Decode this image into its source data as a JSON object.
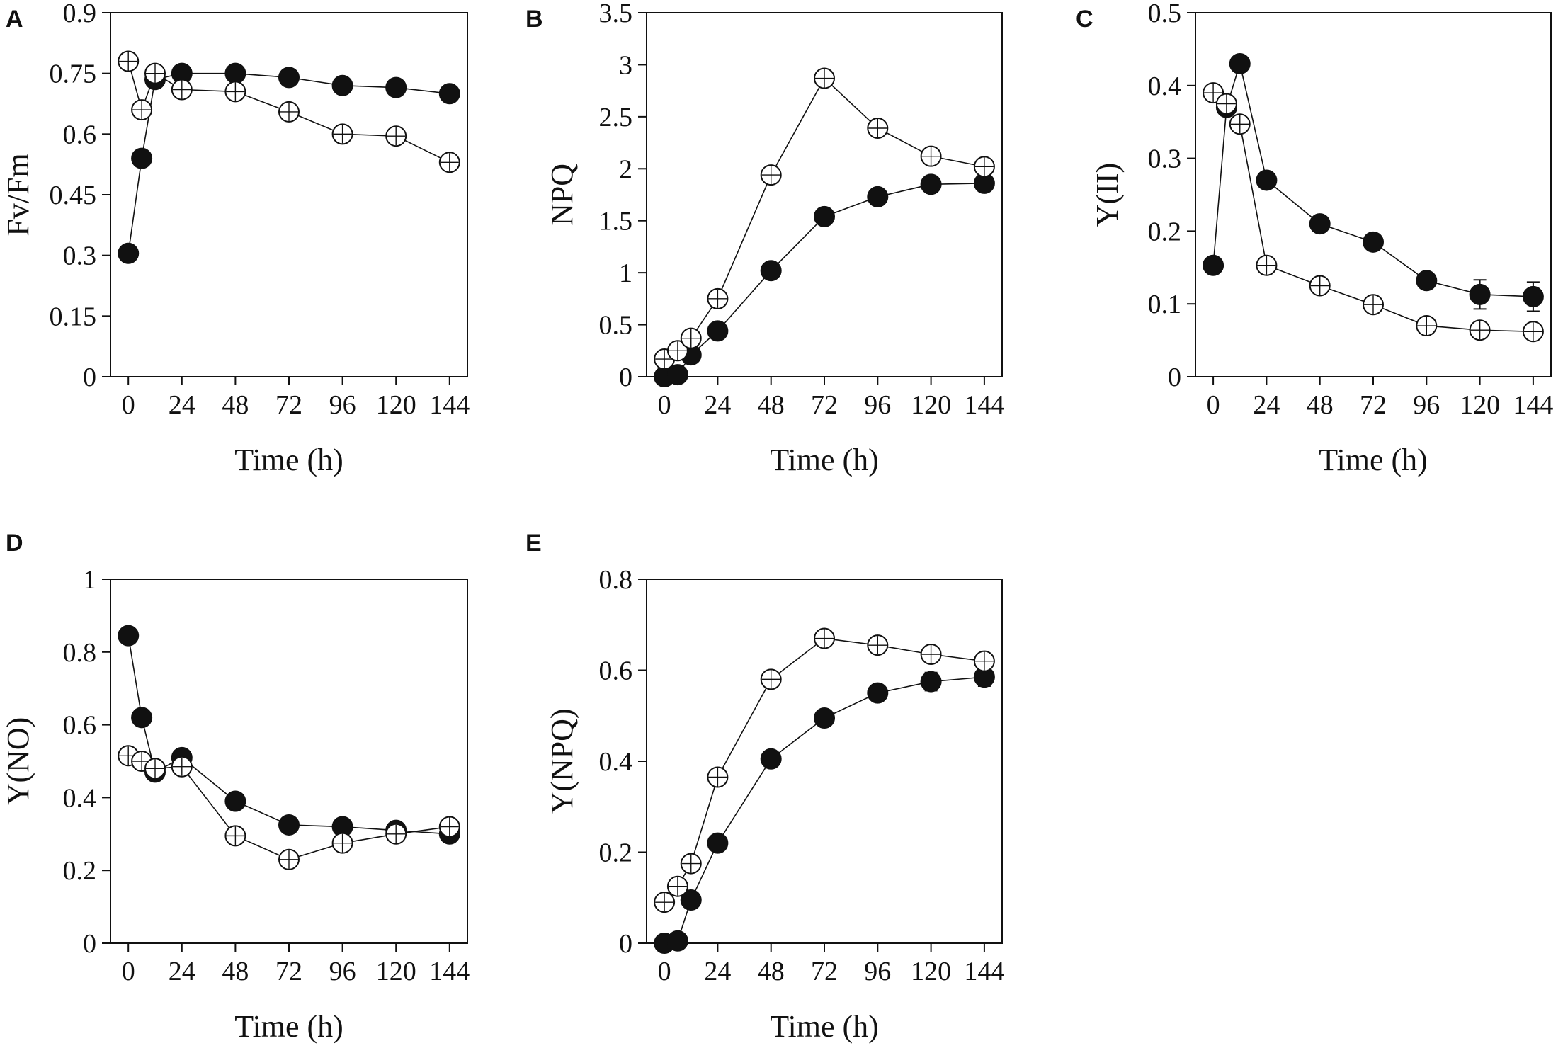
{
  "figure": {
    "background": "#ffffff",
    "ink": "#111111"
  },
  "chart_data": [
    {
      "panel": "A",
      "type": "line",
      "xlabel": "Time (h)",
      "ylabel": "Fv/Fm",
      "xlim": [
        -8,
        152
      ],
      "ylim": [
        0,
        0.9
      ],
      "xticks": [
        0,
        24,
        48,
        72,
        96,
        120,
        144
      ],
      "xtick_labels": [
        "0",
        "24",
        "48",
        "72",
        "96",
        "120",
        "144"
      ],
      "yticks": [
        0,
        0.15,
        0.3,
        0.45,
        0.6,
        0.75,
        0.9
      ],
      "ytick_labels": [
        "0",
        "0.15",
        "0.3",
        "0.45",
        "0.6",
        "0.75",
        "0.9"
      ],
      "series": [
        {
          "name": "filled",
          "marker": "filled-circle",
          "x": [
            0,
            6,
            12,
            24,
            48,
            72,
            96,
            120,
            144
          ],
          "y": [
            0.305,
            0.54,
            0.735,
            0.75,
            0.75,
            0.74,
            0.72,
            0.715,
            0.7
          ],
          "err": [
            0.01,
            0.01,
            0.01,
            0.01,
            0.01,
            0.01,
            0.01,
            0.01,
            0.01
          ]
        },
        {
          "name": "open",
          "marker": "open-circle",
          "x": [
            0,
            6,
            12,
            24,
            48,
            72,
            96,
            120,
            144
          ],
          "y": [
            0.78,
            0.66,
            0.75,
            0.71,
            0.705,
            0.655,
            0.6,
            0.595,
            0.53
          ],
          "err": [
            0.01,
            0.01,
            0.01,
            0.015,
            0.015,
            0.015,
            0.01,
            0.01,
            0.015
          ]
        }
      ]
    },
    {
      "panel": "B",
      "type": "line",
      "xlabel": "Time (h)",
      "ylabel": "NPQ",
      "xlim": [
        -8,
        152
      ],
      "ylim": [
        0,
        3.5
      ],
      "xticks": [
        0,
        24,
        48,
        72,
        96,
        120,
        144
      ],
      "xtick_labels": [
        "0",
        "24",
        "48",
        "72",
        "96",
        "120",
        "144"
      ],
      "yticks": [
        0,
        0.5,
        1,
        1.5,
        2,
        2.5,
        3,
        3.5
      ],
      "ytick_labels": [
        "0",
        "0.5",
        "1",
        "1.5",
        "2",
        "2.5",
        "3",
        "3.5"
      ],
      "series": [
        {
          "name": "filled",
          "marker": "filled-circle",
          "x": [
            0,
            6,
            12,
            24,
            48,
            72,
            96,
            120,
            144
          ],
          "y": [
            0.0,
            0.02,
            0.21,
            0.44,
            1.02,
            1.54,
            1.73,
            1.85,
            1.86
          ],
          "err": [
            0.01,
            0.01,
            0.03,
            0.03,
            0.05,
            0.05,
            0.05,
            0.05,
            0.07
          ]
        },
        {
          "name": "open",
          "marker": "open-circle",
          "x": [
            0,
            6,
            12,
            24,
            48,
            72,
            96,
            120,
            144
          ],
          "y": [
            0.17,
            0.25,
            0.37,
            0.75,
            1.94,
            2.87,
            2.39,
            2.12,
            2.02
          ],
          "err": [
            0.02,
            0.02,
            0.03,
            0.04,
            0.05,
            0.05,
            0.05,
            0.05,
            0.05
          ]
        }
      ]
    },
    {
      "panel": "C",
      "type": "line",
      "xlabel": "Time (h)",
      "ylabel": "Y(II)",
      "xlim": [
        -8,
        152
      ],
      "ylim": [
        0,
        0.5
      ],
      "xticks": [
        0,
        24,
        48,
        72,
        96,
        120,
        144
      ],
      "xtick_labels": [
        "0",
        "24",
        "48",
        "72",
        "96",
        "120",
        "144"
      ],
      "yticks": [
        0,
        0.1,
        0.2,
        0.3,
        0.4,
        0.5
      ],
      "ytick_labels": [
        "0",
        "0.1",
        "0.2",
        "0.3",
        "0.4",
        "0.5"
      ],
      "series": [
        {
          "name": "filled",
          "marker": "filled-circle",
          "x": [
            0,
            6,
            12,
            24,
            48,
            72,
            96,
            120,
            144
          ],
          "y": [
            0.153,
            0.37,
            0.43,
            0.27,
            0.21,
            0.185,
            0.132,
            0.113,
            0.11
          ],
          "err": [
            0.005,
            0.005,
            0.005,
            0.005,
            0.005,
            0.005,
            0.005,
            0.02,
            0.02
          ]
        },
        {
          "name": "open",
          "marker": "open-circle",
          "x": [
            0,
            6,
            12,
            24,
            48,
            72,
            96,
            120,
            144
          ],
          "y": [
            0.39,
            0.375,
            0.347,
            0.153,
            0.125,
            0.099,
            0.07,
            0.064,
            0.062
          ],
          "err": [
            0.005,
            0.005,
            0.005,
            0.005,
            0.005,
            0.005,
            0.005,
            0.01,
            0.01
          ]
        }
      ]
    },
    {
      "panel": "D",
      "type": "line",
      "xlabel": "Time (h)",
      "ylabel": "Y(NO)",
      "xlim": [
        -8,
        152
      ],
      "ylim": [
        0,
        1
      ],
      "xticks": [
        0,
        24,
        48,
        72,
        96,
        120,
        144
      ],
      "xtick_labels": [
        "0",
        "24",
        "48",
        "72",
        "96",
        "120",
        "144"
      ],
      "yticks": [
        0,
        0.2,
        0.4,
        0.6,
        0.8,
        1
      ],
      "ytick_labels": [
        "0",
        "0.2",
        "0.4",
        "0.6",
        "0.8",
        "1"
      ],
      "series": [
        {
          "name": "filled",
          "marker": "filled-circle",
          "x": [
            0,
            6,
            12,
            24,
            48,
            72,
            96,
            120,
            144
          ],
          "y": [
            0.845,
            0.62,
            0.47,
            0.51,
            0.39,
            0.325,
            0.32,
            0.31,
            0.3
          ],
          "err": [
            0.01,
            0.01,
            0.01,
            0.01,
            0.01,
            0.01,
            0.01,
            0.01,
            0.01
          ]
        },
        {
          "name": "open",
          "marker": "open-circle",
          "x": [
            0,
            6,
            12,
            24,
            48,
            72,
            96,
            120,
            144
          ],
          "y": [
            0.515,
            0.5,
            0.48,
            0.485,
            0.295,
            0.23,
            0.275,
            0.3,
            0.32
          ],
          "err": [
            0.01,
            0.01,
            0.01,
            0.015,
            0.015,
            0.015,
            0.015,
            0.01,
            0.01
          ]
        }
      ]
    },
    {
      "panel": "E",
      "type": "line",
      "xlabel": "Time (h)",
      "ylabel": "Y(NPQ)",
      "xlim": [
        -8,
        152
      ],
      "ylim": [
        0,
        0.8
      ],
      "xticks": [
        0,
        24,
        48,
        72,
        96,
        120,
        144
      ],
      "xtick_labels": [
        "0",
        "24",
        "48",
        "72",
        "96",
        "120",
        "144"
      ],
      "yticks": [
        0,
        0.2,
        0.4,
        0.6,
        0.8
      ],
      "ytick_labels": [
        "0",
        "0.2",
        "0.4",
        "0.6",
        "0.8"
      ],
      "series": [
        {
          "name": "filled",
          "marker": "filled-circle",
          "x": [
            0,
            6,
            12,
            24,
            48,
            72,
            96,
            120,
            144
          ],
          "y": [
            0.0,
            0.005,
            0.095,
            0.22,
            0.405,
            0.495,
            0.55,
            0.575,
            0.585
          ],
          "err": [
            0.003,
            0.003,
            0.01,
            0.01,
            0.01,
            0.01,
            0.01,
            0.02,
            0.02
          ]
        },
        {
          "name": "open",
          "marker": "open-circle",
          "x": [
            0,
            6,
            12,
            24,
            48,
            72,
            96,
            120,
            144
          ],
          "y": [
            0.09,
            0.125,
            0.175,
            0.365,
            0.58,
            0.67,
            0.655,
            0.635,
            0.62
          ],
          "err": [
            0.005,
            0.005,
            0.01,
            0.01,
            0.01,
            0.01,
            0.01,
            0.01,
            0.01
          ]
        }
      ]
    }
  ]
}
